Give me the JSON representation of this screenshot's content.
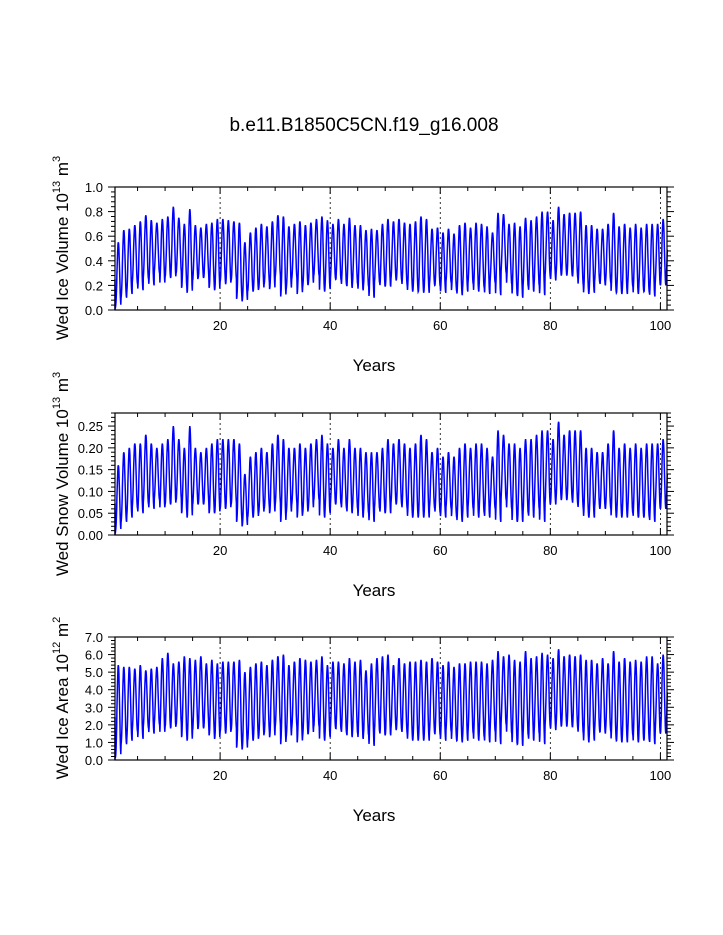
{
  "figure": {
    "title": "b.e11.B1850C5CN.f19_g16.008",
    "series_color": "#0000ff"
  },
  "chart_data": [
    {
      "type": "line",
      "title": "b.e11.B1850C5CN.f19_g16.008",
      "xlabel": "Years",
      "ylabel_prefix": "Wed Ice Volume 10",
      "ylabel_exp": "13",
      "ylabel_unit": "m",
      "ylabel_unit_exp": "3",
      "xlim": [
        0.9,
        101.2
      ],
      "ylim": [
        0.0,
        1.0
      ],
      "xticks": [
        20,
        40,
        60,
        80,
        100
      ],
      "xtick_labels": [
        "20",
        "40",
        "60",
        "80",
        "100"
      ],
      "yticks": [
        0.0,
        0.2,
        0.4,
        0.6,
        0.8,
        1.0
      ],
      "ytick_labels": [
        "0.0",
        "0.2",
        "0.4",
        "0.6",
        "0.8",
        "1.0"
      ],
      "grid_x": true,
      "series": [
        {
          "name": "Wed Ice Volume",
          "color": "#0000ff",
          "x_start": 1.0,
          "x_step": 1.0,
          "seasonal_max": [
            0.55,
            0.65,
            0.66,
            0.69,
            0.72,
            0.77,
            0.73,
            0.71,
            0.74,
            0.76,
            0.84,
            0.75,
            0.7,
            0.82,
            0.69,
            0.67,
            0.7,
            0.71,
            0.74,
            0.74,
            0.73,
            0.72,
            0.71,
            0.55,
            0.63,
            0.67,
            0.7,
            0.68,
            0.72,
            0.77,
            0.76,
            0.68,
            0.7,
            0.72,
            0.69,
            0.71,
            0.74,
            0.76,
            0.73,
            0.7,
            0.74,
            0.7,
            0.75,
            0.69,
            0.69,
            0.65,
            0.66,
            0.65,
            0.7,
            0.74,
            0.72,
            0.74,
            0.71,
            0.7,
            0.72,
            0.76,
            0.74,
            0.66,
            0.67,
            0.63,
            0.66,
            0.62,
            0.69,
            0.71,
            0.67,
            0.71,
            0.7,
            0.68,
            0.63,
            0.79,
            0.78,
            0.7,
            0.71,
            0.68,
            0.75,
            0.73,
            0.76,
            0.8,
            0.8,
            0.73,
            0.84,
            0.78,
            0.79,
            0.79,
            0.8,
            0.69,
            0.69,
            0.66,
            0.66,
            0.7,
            0.79,
            0.68,
            0.7,
            0.67,
            0.7,
            0.67,
            0.7,
            0.7,
            0.7,
            0.74,
            0.76
          ],
          "seasonal_min": [
            0.03,
            0.1,
            0.13,
            0.21,
            0.16,
            0.25,
            0.2,
            0.3,
            0.21,
            0.27,
            0.26,
            0.3,
            0.18,
            0.14,
            0.24,
            0.26,
            0.26,
            0.18,
            0.16,
            0.23,
            0.21,
            0.24,
            0.09,
            0.07,
            0.15,
            0.15,
            0.17,
            0.21,
            0.17,
            0.27,
            0.11,
            0.17,
            0.25,
            0.13,
            0.19,
            0.21,
            0.28,
            0.15,
            0.17,
            0.25,
            0.24,
            0.2,
            0.18,
            0.21,
            0.16,
            0.19,
            0.1,
            0.22,
            0.19,
            0.19,
            0.24,
            0.24,
            0.2,
            0.15,
            0.15,
            0.14,
            0.14,
            0.2,
            0.19,
            0.14,
            0.22,
            0.15,
            0.12,
            0.15,
            0.21,
            0.15,
            0.18,
            0.13,
            0.22,
            0.12,
            0.3,
            0.21,
            0.12,
            0.1,
            0.19,
            0.15,
            0.2,
            0.12,
            0.27,
            0.24,
            0.28,
            0.28,
            0.28,
            0.26,
            0.2,
            0.13,
            0.14,
            0.22,
            0.2,
            0.22,
            0.14,
            0.13,
            0.13,
            0.19,
            0.13,
            0.15,
            0.14,
            0.11,
            0.2,
            0.2,
            0.22
          ]
        }
      ]
    },
    {
      "type": "line",
      "xlabel": "Years",
      "ylabel_prefix": "Wed Snow Volume 10",
      "ylabel_exp": "13",
      "ylabel_unit": "m",
      "ylabel_unit_exp": "3",
      "xlim": [
        0.9,
        101.2
      ],
      "ylim": [
        0.0,
        0.28
      ],
      "xticks": [
        20,
        40,
        60,
        80,
        100
      ],
      "xtick_labels": [
        "20",
        "40",
        "60",
        "80",
        "100"
      ],
      "yticks": [
        0.0,
        0.05,
        0.1,
        0.15,
        0.2,
        0.25
      ],
      "ytick_labels": [
        "0.00",
        "0.05",
        "0.10",
        "0.15",
        "0.20",
        "0.25"
      ],
      "grid_x": true,
      "series": [
        {
          "name": "Wed Snow Volume",
          "color": "#0000ff",
          "x_start": 1.0,
          "x_step": 1.0,
          "seasonal_max": [
            0.16,
            0.19,
            0.2,
            0.21,
            0.21,
            0.23,
            0.21,
            0.2,
            0.21,
            0.22,
            0.25,
            0.22,
            0.2,
            0.25,
            0.2,
            0.19,
            0.2,
            0.21,
            0.22,
            0.22,
            0.22,
            0.22,
            0.21,
            0.14,
            0.18,
            0.19,
            0.2,
            0.19,
            0.21,
            0.23,
            0.22,
            0.2,
            0.2,
            0.21,
            0.2,
            0.21,
            0.22,
            0.23,
            0.21,
            0.2,
            0.22,
            0.2,
            0.22,
            0.2,
            0.2,
            0.19,
            0.19,
            0.19,
            0.2,
            0.22,
            0.21,
            0.22,
            0.21,
            0.2,
            0.21,
            0.23,
            0.22,
            0.19,
            0.2,
            0.18,
            0.19,
            0.18,
            0.2,
            0.21,
            0.2,
            0.21,
            0.21,
            0.2,
            0.18,
            0.24,
            0.23,
            0.21,
            0.21,
            0.2,
            0.22,
            0.22,
            0.23,
            0.24,
            0.24,
            0.22,
            0.26,
            0.23,
            0.24,
            0.24,
            0.24,
            0.2,
            0.2,
            0.19,
            0.19,
            0.21,
            0.24,
            0.2,
            0.21,
            0.2,
            0.21,
            0.2,
            0.21,
            0.21,
            0.21,
            0.22,
            0.22
          ],
          "seasonal_min": [
            0.01,
            0.03,
            0.04,
            0.06,
            0.05,
            0.07,
            0.06,
            0.08,
            0.06,
            0.07,
            0.07,
            0.08,
            0.05,
            0.04,
            0.07,
            0.07,
            0.07,
            0.05,
            0.05,
            0.06,
            0.06,
            0.07,
            0.03,
            0.02,
            0.04,
            0.04,
            0.05,
            0.06,
            0.05,
            0.07,
            0.03,
            0.05,
            0.07,
            0.04,
            0.05,
            0.06,
            0.08,
            0.04,
            0.05,
            0.07,
            0.07,
            0.06,
            0.05,
            0.06,
            0.04,
            0.05,
            0.03,
            0.06,
            0.05,
            0.05,
            0.07,
            0.07,
            0.06,
            0.04,
            0.04,
            0.04,
            0.04,
            0.06,
            0.05,
            0.04,
            0.06,
            0.04,
            0.03,
            0.04,
            0.06,
            0.04,
            0.05,
            0.04,
            0.06,
            0.03,
            0.08,
            0.06,
            0.03,
            0.03,
            0.05,
            0.04,
            0.06,
            0.03,
            0.07,
            0.07,
            0.08,
            0.08,
            0.08,
            0.07,
            0.06,
            0.04,
            0.04,
            0.06,
            0.06,
            0.06,
            0.04,
            0.04,
            0.04,
            0.05,
            0.04,
            0.04,
            0.04,
            0.03,
            0.06,
            0.06,
            0.06
          ]
        }
      ]
    },
    {
      "type": "line",
      "xlabel": "Years",
      "ylabel_prefix": "Wed Ice Area 10",
      "ylabel_exp": "12",
      "ylabel_unit": "m",
      "ylabel_unit_exp": "2",
      "xlim": [
        0.9,
        101.2
      ],
      "ylim": [
        0.0,
        7.0
      ],
      "xticks": [
        20,
        40,
        60,
        80,
        100
      ],
      "xtick_labels": [
        "20",
        "40",
        "60",
        "80",
        "100"
      ],
      "yticks": [
        0.0,
        1.0,
        2.0,
        3.0,
        4.0,
        5.0,
        6.0,
        7.0
      ],
      "ytick_labels": [
        "0.0",
        "1.0",
        "2.0",
        "3.0",
        "4.0",
        "5.0",
        "6.0",
        "7.0"
      ],
      "grid_x": true,
      "series": [
        {
          "name": "Wed Ice Area",
          "color": "#0000ff",
          "x_start": 1.0,
          "x_step": 1.0,
          "seasonal_max": [
            5.4,
            5.3,
            5.3,
            5.2,
            5.4,
            5.1,
            5.2,
            5.3,
            5.8,
            6.1,
            5.5,
            5.6,
            5.9,
            5.8,
            5.7,
            5.9,
            5.5,
            5.7,
            5.5,
            5.6,
            5.6,
            5.6,
            5.7,
            5.0,
            5.3,
            5.5,
            5.6,
            5.4,
            5.7,
            5.9,
            6.0,
            5.4,
            5.6,
            5.8,
            5.7,
            5.6,
            5.7,
            5.9,
            5.4,
            5.6,
            5.6,
            5.5,
            5.8,
            5.6,
            5.7,
            5.1,
            5.5,
            5.8,
            5.9,
            6.0,
            5.4,
            5.8,
            5.5,
            5.6,
            5.6,
            5.7,
            5.6,
            5.8,
            5.6,
            5.4,
            5.6,
            5.3,
            5.5,
            5.5,
            5.6,
            5.6,
            5.6,
            5.5,
            5.7,
            6.2,
            5.9,
            6.0,
            5.7,
            5.6,
            6.2,
            5.8,
            5.9,
            6.1,
            6.0,
            5.8,
            6.3,
            5.9,
            6.0,
            5.9,
            6.0,
            5.7,
            5.7,
            5.5,
            5.8,
            5.5,
            6.2,
            5.6,
            5.8,
            5.6,
            5.7,
            5.6,
            5.9,
            5.9,
            5.5,
            6.0,
            6.1
          ],
          "seasonal_min": [
            0.2,
            0.9,
            1.1,
            1.6,
            1.2,
            1.8,
            1.5,
            2.0,
            1.5,
            1.9,
            1.8,
            2.0,
            1.3,
            1.1,
            1.7,
            1.8,
            1.8,
            1.4,
            1.2,
            1.6,
            1.5,
            1.7,
            0.7,
            0.6,
            1.1,
            1.1,
            1.3,
            1.5,
            1.3,
            1.9,
            0.9,
            1.3,
            1.8,
            1.0,
            1.4,
            1.5,
            1.9,
            1.1,
            1.3,
            1.8,
            1.7,
            1.5,
            1.3,
            1.5,
            1.2,
            1.4,
            0.8,
            1.6,
            1.4,
            1.4,
            1.7,
            1.7,
            1.5,
            1.1,
            1.1,
            1.1,
            1.1,
            1.5,
            1.4,
            1.1,
            1.6,
            1.1,
            1.0,
            1.1,
            1.5,
            1.1,
            1.3,
            1.0,
            1.6,
            0.9,
            2.0,
            1.5,
            0.9,
            0.8,
            1.4,
            1.1,
            1.5,
            0.9,
            1.9,
            1.7,
            1.9,
            1.9,
            1.9,
            1.8,
            1.5,
            1.0,
            1.1,
            1.6,
            1.5,
            1.6,
            1.1,
            1.0,
            1.0,
            1.4,
            1.0,
            1.1,
            1.1,
            0.9,
            1.5,
            1.5,
            1.6
          ]
        }
      ]
    }
  ]
}
